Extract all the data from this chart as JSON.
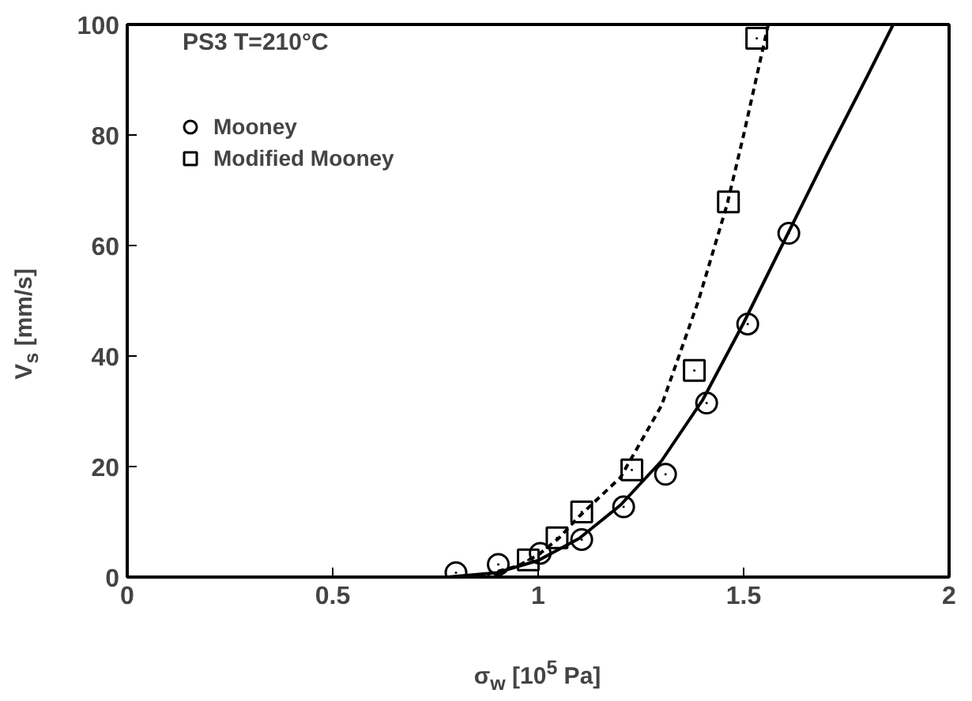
{
  "chart_data": {
    "type": "scatter",
    "xlabel": "σ$_{w}$ [10$^{5}$ Pa]",
    "ylabel": "V$_{s}$ [mm/s]",
    "annotations": [
      "PS3 T=210°C"
    ],
    "xlim": [
      0,
      2
    ],
    "ylim": [
      0,
      100
    ],
    "xticks": [
      0,
      0.5,
      1,
      1.5,
      2
    ],
    "yticks": [
      0,
      20,
      40,
      60,
      80,
      100
    ],
    "grid": false,
    "legend": "top left",
    "series": [
      {
        "name": "Mooney",
        "marker": "circle",
        "color": "#000000",
        "x": [
          0.8,
          0.903,
          1.005,
          1.106,
          1.208,
          1.31,
          1.41,
          1.51,
          1.61
        ],
        "values": [
          0.8,
          2.3,
          4.3,
          6.8,
          12.7,
          18.6,
          31.5,
          45.8,
          62.2
        ]
      },
      {
        "name": "Modified Mooney",
        "marker": "square",
        "color": "#000000",
        "x": [
          0.976,
          1.046,
          1.106,
          1.228,
          1.38,
          1.463,
          1.532
        ],
        "values": [
          3.1,
          7.1,
          11.8,
          19.4,
          37.4,
          67.9,
          97.5
        ]
      },
      {
        "type": "line",
        "line_style": "solid",
        "color": "#000000",
        "x": [
          0.78,
          0.9,
          1.0,
          1.1,
          1.2,
          1.3,
          1.4,
          1.5,
          1.6,
          1.7,
          1.8,
          1.864
        ],
        "values": [
          0,
          0.8,
          3,
          7,
          13,
          21,
          32,
          46,
          61,
          76,
          90.5,
          100
        ]
      },
      {
        "type": "line",
        "line_style": "dashed",
        "color": "#000000",
        "x": [
          0.85,
          0.95,
          1.0,
          1.05,
          1.1,
          1.2,
          1.3,
          1.39,
          1.46,
          1.5,
          1.56
        ],
        "values": [
          0,
          2,
          4,
          7,
          11,
          18,
          31,
          50,
          67.5,
          80,
          100
        ]
      }
    ]
  }
}
